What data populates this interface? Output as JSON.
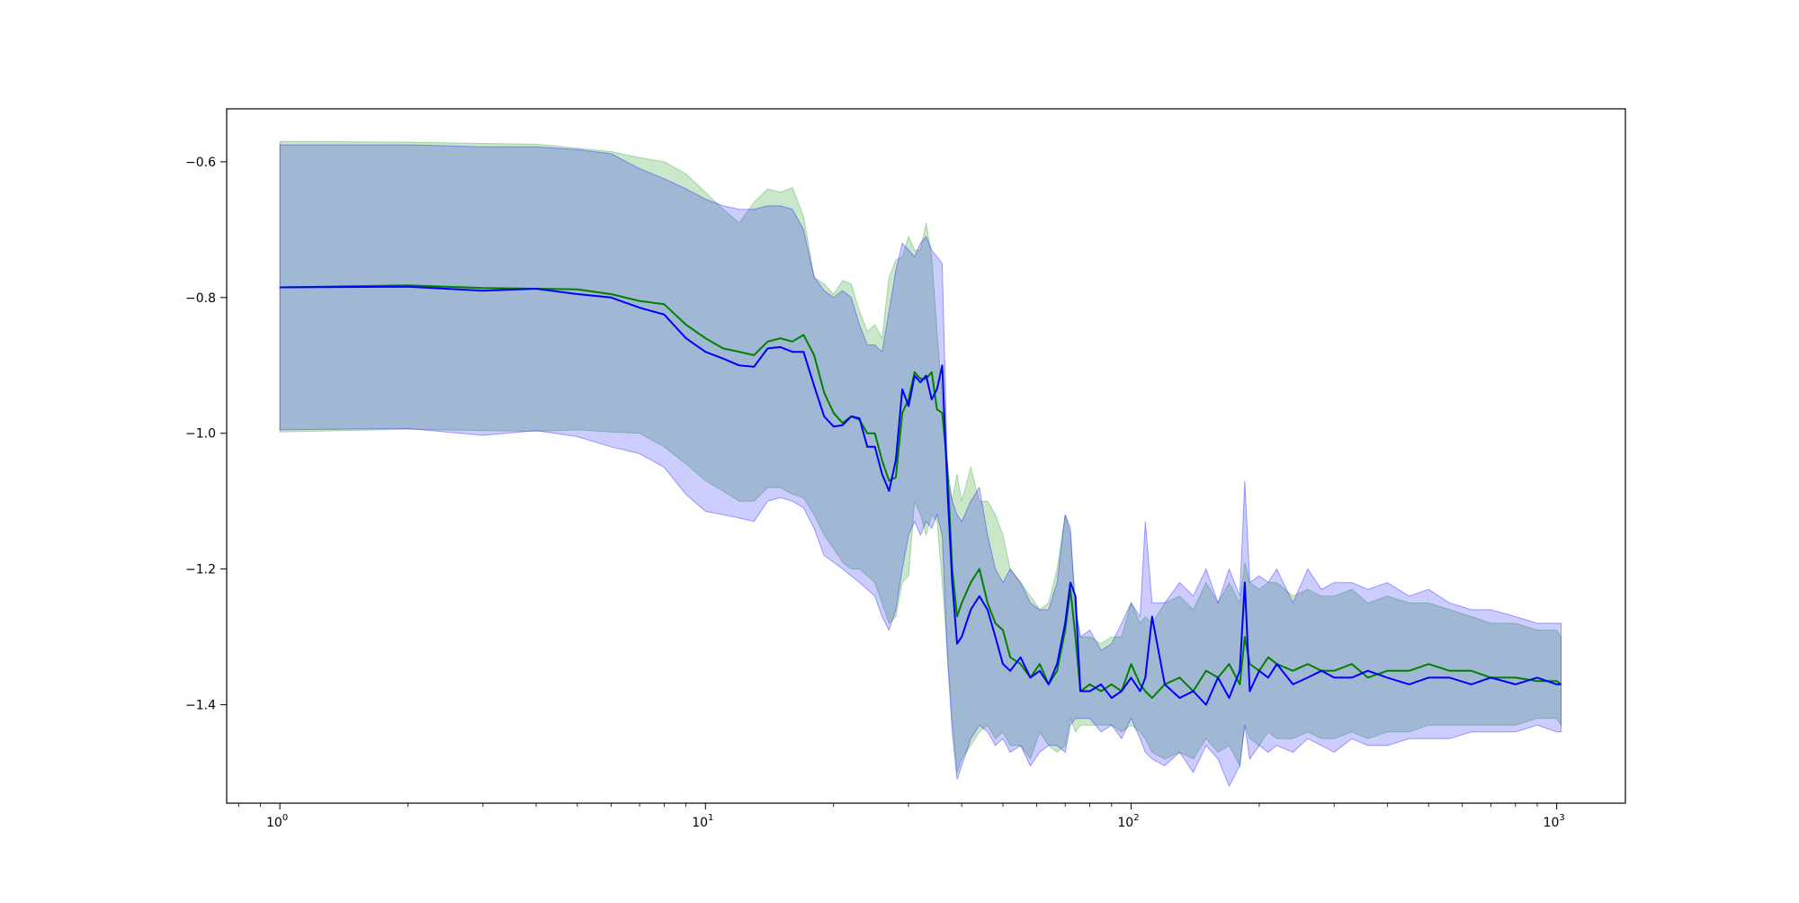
{
  "chart_data": {
    "type": "line",
    "title": "",
    "xlabel": "",
    "ylabel": "",
    "xscale": "log",
    "xlim": [
      0.75,
      1450
    ],
    "ylim": [
      -1.545,
      -0.522
    ],
    "grid": false,
    "legend": "none",
    "x_ticks": [
      {
        "value": 1,
        "label": "10",
        "exp": "0"
      },
      {
        "value": 10,
        "label": "10",
        "exp": "1"
      },
      {
        "value": 100,
        "label": "10",
        "exp": "2"
      },
      {
        "value": 1000,
        "label": "10",
        "exp": "3"
      }
    ],
    "y_ticks": [
      {
        "value": -0.6,
        "label": "−0.6"
      },
      {
        "value": -0.8,
        "label": "−0.8"
      },
      {
        "value": -1.0,
        "label": "−1.0"
      },
      {
        "value": -1.2,
        "label": "−1.2"
      },
      {
        "value": -1.4,
        "label": "−1.4"
      }
    ],
    "series": [
      {
        "color": "#008000",
        "band_color": "#2ca02c",
        "band_opacity": 0.25,
        "x": [
          1,
          2,
          3,
          4,
          5,
          6,
          7,
          8,
          9,
          10,
          11,
          12,
          13,
          14,
          15,
          16,
          17,
          18,
          19,
          20,
          21,
          22,
          23,
          24,
          25,
          26,
          27,
          28,
          29,
          30,
          31,
          32,
          33,
          34,
          35,
          36,
          37,
          38,
          39,
          40,
          42,
          44,
          46,
          48,
          50,
          52,
          55,
          58,
          61,
          64,
          67,
          70,
          72,
          74,
          76,
          80,
          85,
          90,
          95,
          100,
          105,
          108,
          112,
          120,
          130,
          140,
          150,
          160,
          170,
          180,
          185,
          190,
          200,
          210,
          220,
          240,
          260,
          280,
          300,
          330,
          360,
          400,
          450,
          500,
          560,
          630,
          700,
          800,
          900,
          1000,
          1024
        ],
        "y": [
          -0.785,
          -0.782,
          -0.786,
          -0.787,
          -0.788,
          -0.795,
          -0.805,
          -0.81,
          -0.84,
          -0.86,
          -0.875,
          -0.88,
          -0.885,
          -0.865,
          -0.86,
          -0.865,
          -0.855,
          -0.885,
          -0.94,
          -0.97,
          -0.985,
          -0.975,
          -0.98,
          -1.0,
          -1.0,
          -1.04,
          -1.07,
          -1.065,
          -0.97,
          -0.95,
          -0.91,
          -0.92,
          -0.92,
          -0.91,
          -0.965,
          -0.97,
          -1.05,
          -1.2,
          -1.27,
          -1.25,
          -1.22,
          -1.2,
          -1.25,
          -1.28,
          -1.29,
          -1.33,
          -1.34,
          -1.36,
          -1.34,
          -1.37,
          -1.35,
          -1.29,
          -1.23,
          -1.3,
          -1.38,
          -1.37,
          -1.38,
          -1.37,
          -1.38,
          -1.34,
          -1.37,
          -1.38,
          -1.39,
          -1.37,
          -1.36,
          -1.38,
          -1.35,
          -1.36,
          -1.34,
          -1.37,
          -1.3,
          -1.34,
          -1.35,
          -1.33,
          -1.34,
          -1.35,
          -1.34,
          -1.35,
          -1.35,
          -1.34,
          -1.36,
          -1.35,
          -1.35,
          -1.34,
          -1.35,
          -1.35,
          -1.36,
          -1.36,
          -1.365,
          -1.365,
          -1.37
        ],
        "upper": [
          -0.57,
          -0.571,
          -0.573,
          -0.574,
          -0.58,
          -0.585,
          -0.594,
          -0.6,
          -0.618,
          -0.645,
          -0.67,
          -0.69,
          -0.66,
          -0.64,
          -0.645,
          -0.638,
          -0.68,
          -0.77,
          -0.78,
          -0.795,
          -0.775,
          -0.78,
          -0.82,
          -0.85,
          -0.84,
          -0.86,
          -0.77,
          -0.745,
          -0.74,
          -0.71,
          -0.73,
          -0.73,
          -0.69,
          -0.74,
          -0.85,
          -0.95,
          -1.07,
          -1.1,
          -1.06,
          -1.1,
          -1.05,
          -1.1,
          -1.1,
          -1.12,
          -1.15,
          -1.2,
          -1.22,
          -1.24,
          -1.26,
          -1.25,
          -1.2,
          -1.12,
          -1.15,
          -1.25,
          -1.3,
          -1.3,
          -1.31,
          -1.3,
          -1.3,
          -1.25,
          -1.28,
          -1.27,
          -1.28,
          -1.25,
          -1.24,
          -1.26,
          -1.22,
          -1.25,
          -1.22,
          -1.25,
          -1.19,
          -1.22,
          -1.23,
          -1.22,
          -1.22,
          -1.24,
          -1.23,
          -1.24,
          -1.24,
          -1.23,
          -1.25,
          -1.24,
          -1.25,
          -1.25,
          -1.26,
          -1.27,
          -1.28,
          -1.28,
          -1.29,
          -1.29,
          -1.3
        ],
        "lower": [
          -0.998,
          -0.994,
          -0.996,
          -0.997,
          -0.995,
          -0.998,
          -1.0,
          -1.02,
          -1.045,
          -1.07,
          -1.085,
          -1.1,
          -1.1,
          -1.08,
          -1.08,
          -1.09,
          -1.095,
          -1.12,
          -1.15,
          -1.17,
          -1.19,
          -1.2,
          -1.2,
          -1.21,
          -1.22,
          -1.25,
          -1.28,
          -1.27,
          -1.22,
          -1.21,
          -1.1,
          -1.12,
          -1.15,
          -1.12,
          -1.13,
          -1.22,
          -1.32,
          -1.42,
          -1.5,
          -1.48,
          -1.46,
          -1.44,
          -1.43,
          -1.45,
          -1.44,
          -1.46,
          -1.46,
          -1.48,
          -1.44,
          -1.46,
          -1.47,
          -1.46,
          -1.42,
          -1.44,
          -1.43,
          -1.43,
          -1.43,
          -1.43,
          -1.44,
          -1.43,
          -1.44,
          -1.45,
          -1.47,
          -1.48,
          -1.47,
          -1.48,
          -1.45,
          -1.47,
          -1.46,
          -1.49,
          -1.43,
          -1.45,
          -1.46,
          -1.44,
          -1.45,
          -1.45,
          -1.44,
          -1.45,
          -1.45,
          -1.44,
          -1.45,
          -1.44,
          -1.44,
          -1.43,
          -1.43,
          -1.43,
          -1.43,
          -1.43,
          -1.42,
          -1.42,
          -1.43
        ]
      },
      {
        "color": "#0000ff",
        "band_color": "#0000ff",
        "band_opacity": 0.2,
        "x": [
          1,
          2,
          3,
          4,
          5,
          6,
          7,
          8,
          9,
          10,
          11,
          12,
          13,
          14,
          15,
          16,
          17,
          18,
          19,
          20,
          21,
          22,
          23,
          24,
          25,
          26,
          27,
          28,
          29,
          30,
          31,
          32,
          33,
          34,
          35,
          36,
          37,
          38,
          39,
          40,
          42,
          44,
          46,
          48,
          50,
          52,
          55,
          58,
          61,
          64,
          67,
          70,
          72,
          74,
          76,
          80,
          85,
          90,
          95,
          100,
          105,
          108,
          112,
          120,
          130,
          140,
          150,
          160,
          170,
          180,
          185,
          190,
          200,
          210,
          220,
          240,
          260,
          280,
          300,
          330,
          360,
          400,
          450,
          500,
          560,
          630,
          700,
          800,
          900,
          1000,
          1024
        ],
        "y": [
          -0.785,
          -0.784,
          -0.79,
          -0.787,
          -0.795,
          -0.8,
          -0.815,
          -0.825,
          -0.86,
          -0.88,
          -0.89,
          -0.9,
          -0.902,
          -0.875,
          -0.873,
          -0.88,
          -0.88,
          -0.93,
          -0.975,
          -0.99,
          -0.988,
          -0.975,
          -0.978,
          -1.02,
          -1.02,
          -1.06,
          -1.085,
          -1.04,
          -0.935,
          -0.96,
          -0.915,
          -0.925,
          -0.915,
          -0.95,
          -0.935,
          -0.9,
          -1.08,
          -1.22,
          -1.31,
          -1.3,
          -1.26,
          -1.24,
          -1.26,
          -1.3,
          -1.34,
          -1.35,
          -1.33,
          -1.36,
          -1.35,
          -1.37,
          -1.34,
          -1.28,
          -1.22,
          -1.24,
          -1.38,
          -1.38,
          -1.37,
          -1.39,
          -1.38,
          -1.36,
          -1.38,
          -1.36,
          -1.27,
          -1.37,
          -1.39,
          -1.38,
          -1.4,
          -1.36,
          -1.39,
          -1.35,
          -1.22,
          -1.38,
          -1.35,
          -1.36,
          -1.34,
          -1.37,
          -1.36,
          -1.35,
          -1.36,
          -1.36,
          -1.35,
          -1.36,
          -1.37,
          -1.36,
          -1.36,
          -1.37,
          -1.36,
          -1.37,
          -1.36,
          -1.37,
          -1.37
        ],
        "upper": [
          -0.575,
          -0.575,
          -0.578,
          -0.578,
          -0.582,
          -0.588,
          -0.61,
          -0.625,
          -0.64,
          -0.655,
          -0.665,
          -0.67,
          -0.67,
          -0.665,
          -0.665,
          -0.67,
          -0.7,
          -0.77,
          -0.79,
          -0.8,
          -0.79,
          -0.8,
          -0.84,
          -0.87,
          -0.87,
          -0.88,
          -0.82,
          -0.76,
          -0.72,
          -0.73,
          -0.74,
          -0.72,
          -0.71,
          -0.73,
          -0.74,
          -0.75,
          -1.05,
          -1.1,
          -1.12,
          -1.13,
          -1.1,
          -1.08,
          -1.15,
          -1.2,
          -1.22,
          -1.2,
          -1.22,
          -1.25,
          -1.26,
          -1.26,
          -1.22,
          -1.12,
          -1.14,
          -1.26,
          -1.3,
          -1.29,
          -1.32,
          -1.31,
          -1.28,
          -1.25,
          -1.27,
          -1.13,
          -1.25,
          -1.25,
          -1.22,
          -1.24,
          -1.2,
          -1.25,
          -1.2,
          -1.24,
          -1.07,
          -1.22,
          -1.21,
          -1.22,
          -1.2,
          -1.25,
          -1.2,
          -1.23,
          -1.22,
          -1.22,
          -1.23,
          -1.22,
          -1.24,
          -1.23,
          -1.25,
          -1.26,
          -1.26,
          -1.27,
          -1.28,
          -1.28,
          -1.28
        ],
        "lower": [
          -0.995,
          -0.993,
          -1.003,
          -0.996,
          -1.005,
          -1.02,
          -1.03,
          -1.05,
          -1.09,
          -1.115,
          -1.12,
          -1.125,
          -1.13,
          -1.1,
          -1.095,
          -1.1,
          -1.11,
          -1.14,
          -1.18,
          -1.19,
          -1.2,
          -1.21,
          -1.22,
          -1.23,
          -1.24,
          -1.27,
          -1.29,
          -1.26,
          -1.2,
          -1.15,
          -1.13,
          -1.15,
          -1.13,
          -1.14,
          -1.12,
          -1.15,
          -1.33,
          -1.44,
          -1.51,
          -1.49,
          -1.45,
          -1.43,
          -1.44,
          -1.46,
          -1.45,
          -1.47,
          -1.46,
          -1.49,
          -1.47,
          -1.46,
          -1.46,
          -1.47,
          -1.43,
          -1.42,
          -1.42,
          -1.42,
          -1.44,
          -1.43,
          -1.45,
          -1.42,
          -1.45,
          -1.47,
          -1.48,
          -1.49,
          -1.47,
          -1.5,
          -1.46,
          -1.48,
          -1.52,
          -1.49,
          -1.43,
          -1.48,
          -1.46,
          -1.47,
          -1.46,
          -1.47,
          -1.45,
          -1.46,
          -1.47,
          -1.45,
          -1.46,
          -1.46,
          -1.45,
          -1.45,
          -1.45,
          -1.44,
          -1.44,
          -1.44,
          -1.43,
          -1.44,
          -1.44
        ]
      }
    ]
  }
}
